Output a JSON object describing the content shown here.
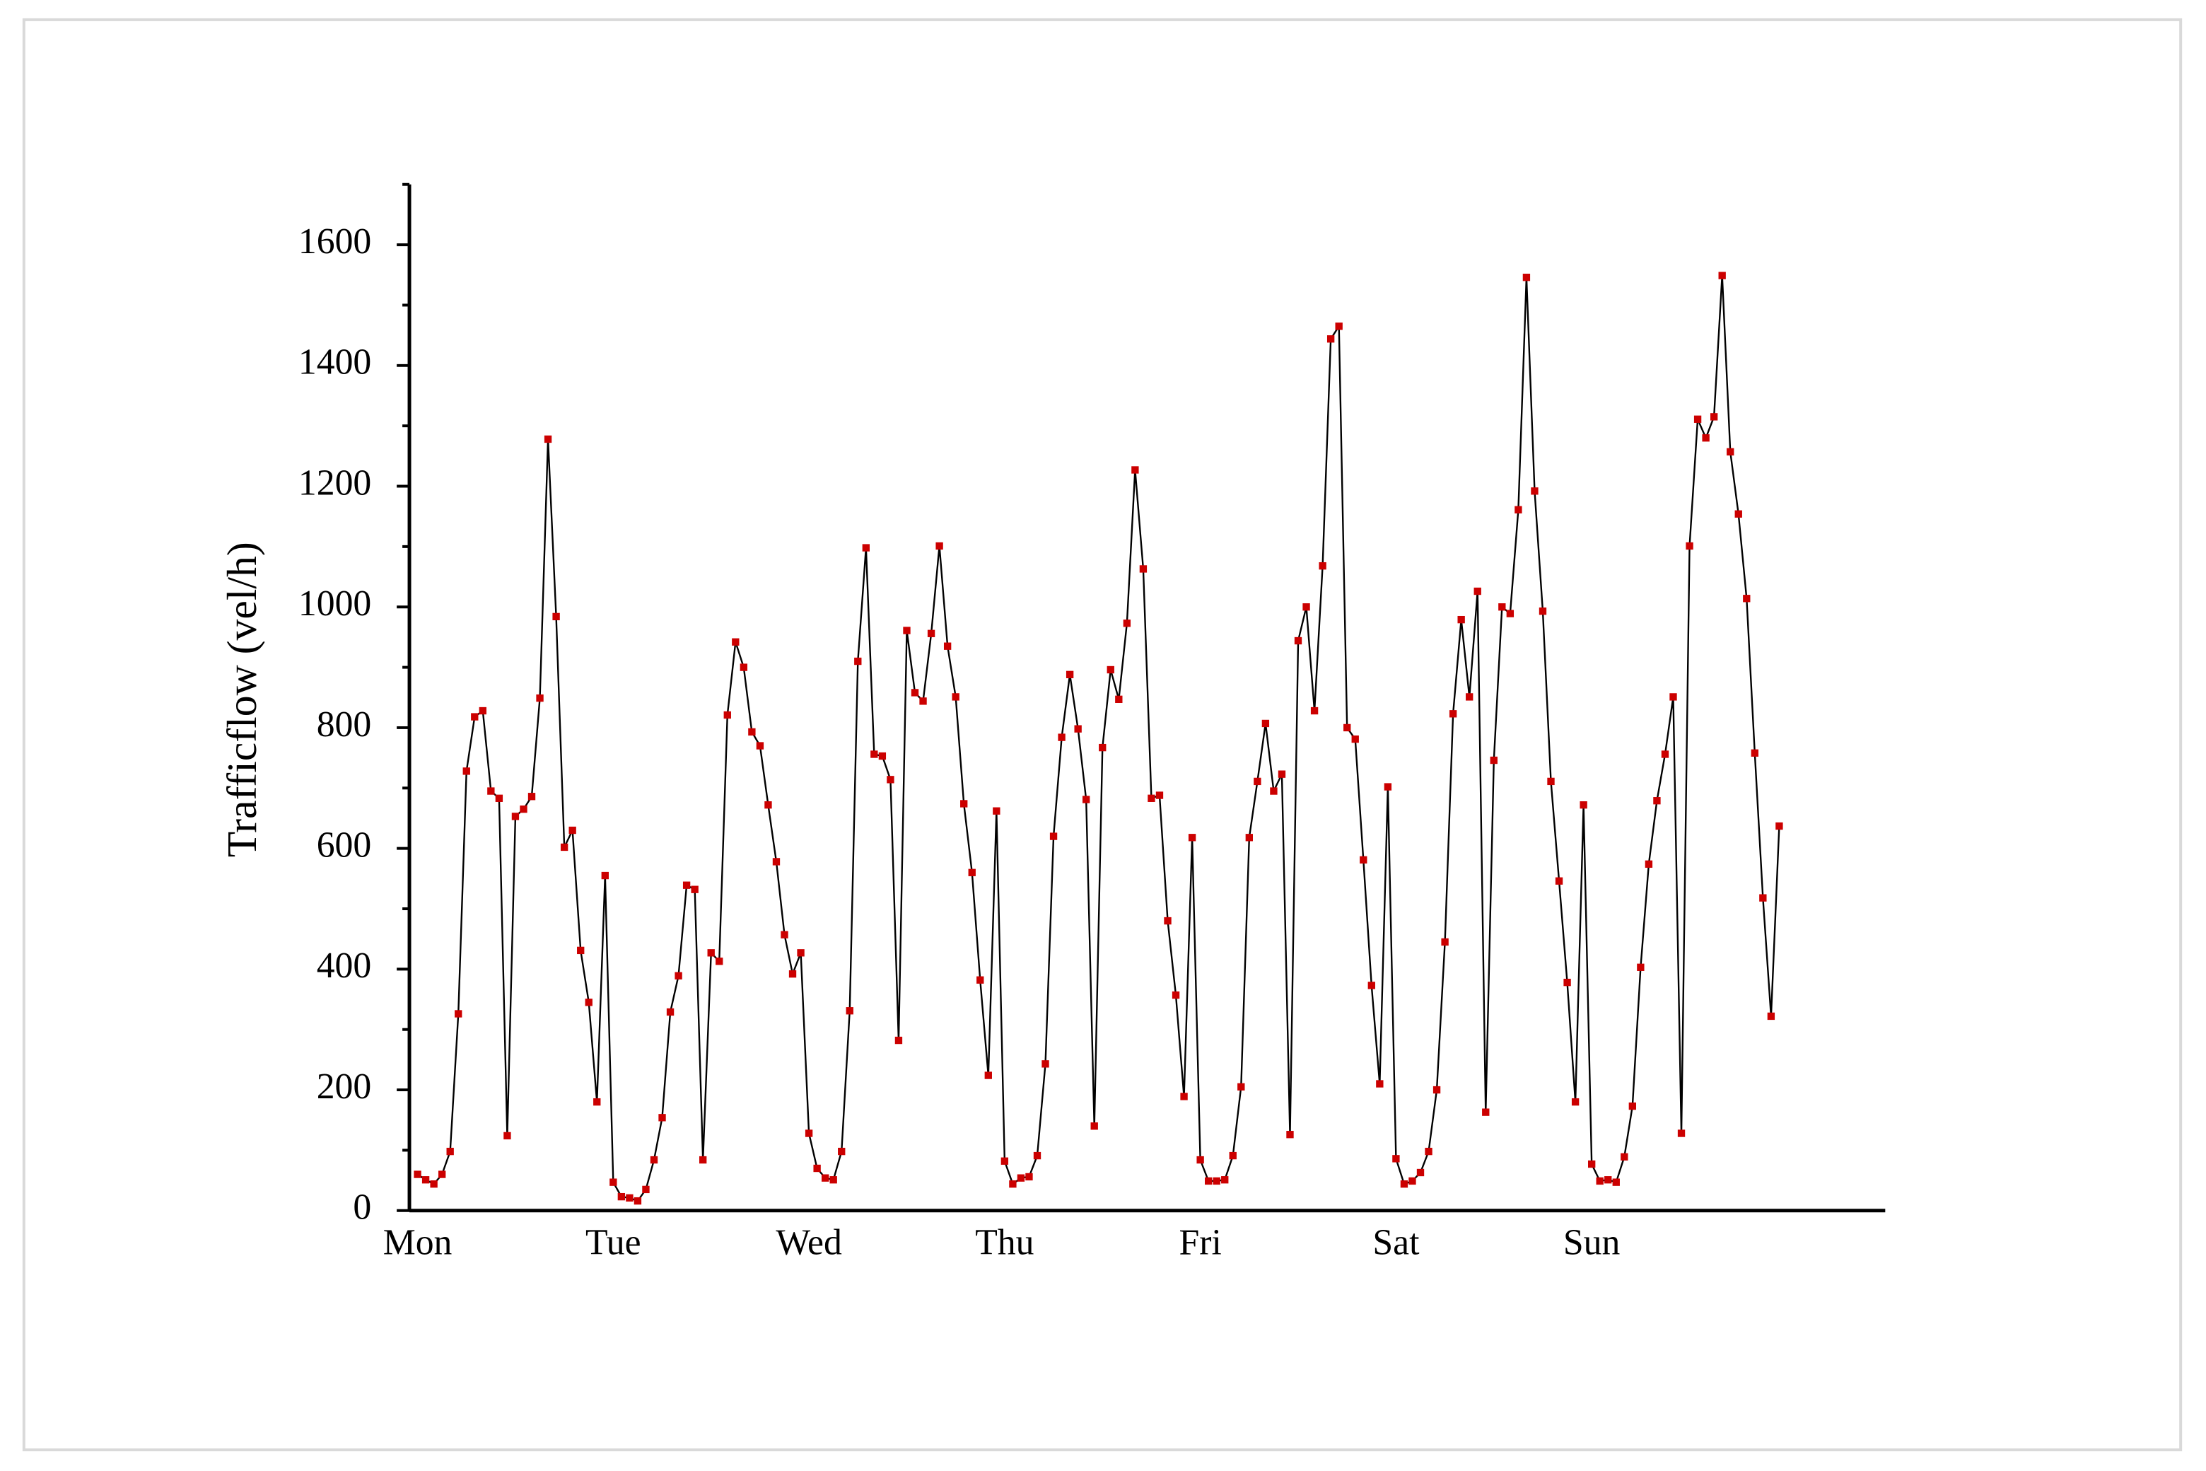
{
  "chart_data": {
    "type": "line",
    "y_label": "Trafficflow (vel/h)",
    "categories": [
      "Mon",
      null,
      null,
      null,
      null,
      null,
      null,
      null,
      null,
      null,
      null,
      null,
      null,
      null,
      null,
      null,
      null,
      null,
      null,
      null,
      null,
      null,
      null,
      null,
      "Tue",
      null,
      null,
      null,
      null,
      null,
      null,
      null,
      null,
      null,
      null,
      null,
      null,
      null,
      null,
      null,
      null,
      null,
      null,
      null,
      null,
      null,
      null,
      null,
      "Wed",
      null,
      null,
      null,
      null,
      null,
      null,
      null,
      null,
      null,
      null,
      null,
      null,
      null,
      null,
      null,
      null,
      null,
      null,
      null,
      null,
      null,
      null,
      null,
      "Thu",
      null,
      null,
      null,
      null,
      null,
      null,
      null,
      null,
      null,
      null,
      null,
      null,
      null,
      null,
      null,
      null,
      null,
      null,
      null,
      null,
      null,
      null,
      null,
      "Fri",
      null,
      null,
      null,
      null,
      null,
      null,
      null,
      null,
      null,
      null,
      null,
      null,
      null,
      null,
      null,
      null,
      null,
      null,
      null,
      null,
      null,
      null,
      null,
      "Sat",
      null,
      null,
      null,
      null,
      null,
      null,
      null,
      null,
      null,
      null,
      null,
      null,
      null,
      null,
      null,
      null,
      null,
      null,
      null,
      null,
      null,
      null,
      null,
      "Sun",
      null,
      null,
      null,
      null,
      null,
      null,
      null,
      null,
      null,
      null,
      null,
      null,
      null,
      null,
      null,
      null,
      null,
      null,
      null,
      null,
      null,
      null,
      null
    ],
    "values": [
      60,
      51,
      44,
      60,
      98,
      326,
      728,
      818,
      828,
      695,
      683,
      124,
      653,
      665,
      686,
      849,
      1278,
      984,
      602,
      630,
      431,
      345,
      180,
      555,
      47,
      23,
      21,
      16,
      35,
      84,
      154,
      329,
      389,
      539,
      532,
      84,
      427,
      413,
      821,
      942,
      900,
      793,
      770,
      672,
      578,
      457,
      392,
      427,
      128,
      70,
      54,
      51,
      98,
      331,
      910,
      1098,
      756,
      753,
      714,
      282,
      961,
      858,
      844,
      956,
      1101,
      935,
      851,
      674,
      560,
      382,
      224,
      662,
      82,
      44,
      54,
      56,
      91,
      243,
      620,
      784,
      888,
      798,
      681,
      140,
      767,
      896,
      847,
      973,
      1227,
      1063,
      683,
      688,
      480,
      357,
      189,
      618,
      84,
      49,
      49,
      51,
      91,
      205,
      618,
      711,
      807,
      695,
      723,
      126,
      944,
      1000,
      828,
      1068,
      1444,
      1465,
      800,
      781,
      581,
      373,
      210,
      702,
      86,
      44,
      49,
      63,
      98,
      200,
      445,
      823,
      979,
      851,
      1026,
      163,
      746,
      1000,
      989,
      1161,
      1546,
      1192,
      993,
      711,
      546,
      378,
      180,
      672,
      77,
      49,
      51,
      47,
      89,
      173,
      403,
      574,
      679,
      756,
      851,
      128,
      1101,
      1311,
      1280,
      1315,
      1549,
      1257,
      1154,
      1014,
      758,
      518,
      322,
      637
    ],
    "line_color": "#000000",
    "marker_color": "#cc0000",
    "ylim": [
      0,
      1700
    ],
    "yticks": [
      0,
      200,
      400,
      600,
      800,
      1000,
      1200,
      1400,
      1600
    ],
    "yminorticks": [
      100,
      300,
      500,
      700,
      900,
      1100,
      1300,
      1500,
      1700
    ]
  }
}
